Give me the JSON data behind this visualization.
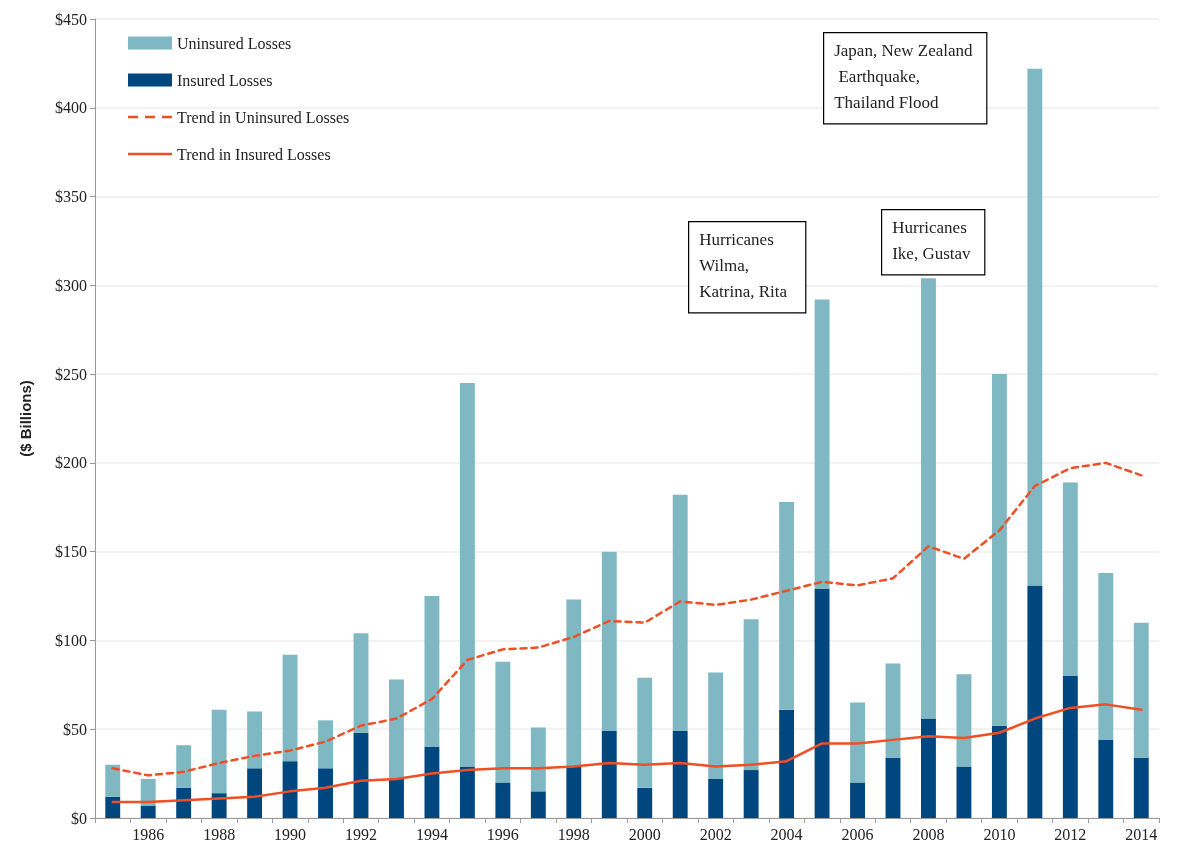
{
  "chart_data": {
    "type": "bar",
    "ylabel": "($ Billions)",
    "categories": [
      null,
      "1986",
      null,
      "1988",
      null,
      "1990",
      null,
      "1992",
      null,
      "1994",
      null,
      "1996",
      null,
      "1998",
      null,
      "2000",
      null,
      "2002",
      null,
      "2004",
      null,
      "2006",
      null,
      "2008",
      null,
      "2010",
      null,
      "2012",
      null,
      "2014"
    ],
    "stacked": true,
    "series": [
      {
        "name": "Insured Losses",
        "color": "#00467f",
        "values": [
          12,
          7,
          17,
          14,
          28,
          32,
          28,
          48,
          22,
          40,
          29,
          20,
          15,
          29,
          49,
          17,
          49,
          22,
          27,
          61,
          129,
          20,
          34,
          56,
          29,
          52,
          131,
          80,
          44,
          34
        ]
      },
      {
        "name": "Uninsured Losses",
        "color": "#7fb8c2",
        "values": [
          18,
          15,
          24,
          47,
          32,
          60,
          27,
          56,
          56,
          85,
          216,
          68,
          36,
          94,
          101,
          62,
          133,
          60,
          85,
          117,
          163,
          45,
          53,
          248,
          52,
          198,
          291,
          109,
          94,
          76
        ]
      },
      {
        "name": "Trend in Uninsured Losses",
        "type": "line",
        "line_style": "dashed",
        "color": "#f04e23",
        "values": [
          28,
          24,
          26,
          31,
          35,
          38,
          43,
          52,
          56,
          67,
          89,
          95,
          96,
          102,
          111,
          110,
          122,
          120,
          123,
          128,
          133,
          131,
          135,
          153,
          146,
          162,
          187,
          197,
          200,
          193
        ]
      },
      {
        "name": "Trend in Insured Losses",
        "type": "line",
        "line_style": "solid",
        "color": "#f04e23",
        "values": [
          9,
          9,
          10,
          11,
          12,
          15,
          17,
          21,
          22,
          25,
          27,
          28,
          28,
          29,
          31,
          30,
          31,
          29,
          30,
          32,
          42,
          42,
          44,
          46,
          45,
          48,
          56,
          62,
          64,
          61
        ]
      }
    ],
    "ylim": [
      0,
      450
    ],
    "yticks": [
      {
        "value": 0,
        "label": "$0"
      },
      {
        "value": 50,
        "label": "$50"
      },
      {
        "value": 100,
        "label": "$100"
      },
      {
        "value": 150,
        "label": "$150"
      },
      {
        "value": 200,
        "label": "$200"
      },
      {
        "value": 250,
        "label": "$250"
      },
      {
        "value": 300,
        "label": "$300"
      },
      {
        "value": 350,
        "label": "$350"
      },
      {
        "value": 400,
        "label": "$400"
      },
      {
        "value": 450,
        "label": "$450"
      }
    ],
    "grid": "y",
    "legend": "top left",
    "marker": "none",
    "annotations": [
      "Hurricanes Wilma, Katrina, Rita",
      "Hurricanes Ike, Gustav",
      "Japan, New Zealand Earthquake, Thailand Flood"
    ]
  }
}
